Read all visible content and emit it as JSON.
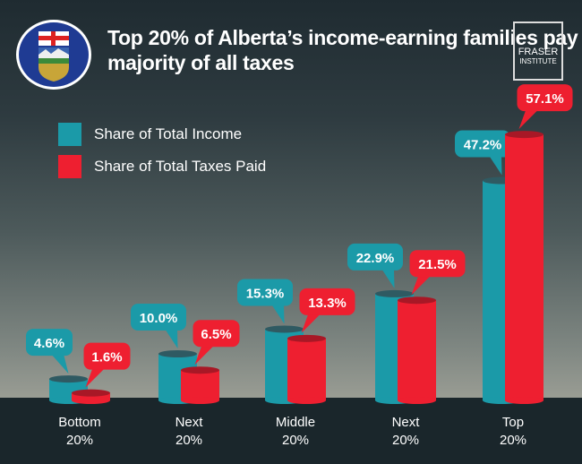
{
  "title": "Top 20% of Alberta’s income-earning families pay majority of all taxes",
  "logo": {
    "line1": "FRASER",
    "line2": "INSTITUTE"
  },
  "crest": "alberta-coat-of-arms",
  "colors": {
    "income": "#1b9aa8",
    "taxes": "#ee1f30"
  },
  "chart_data": {
    "type": "bar",
    "title": "Top 20% of Alberta’s income-earning families pay majority of all taxes",
    "categories": [
      [
        "Bottom",
        "20%"
      ],
      [
        "Next",
        "20%"
      ],
      [
        "Middle",
        "20%"
      ],
      [
        "Next",
        "20%"
      ],
      [
        "Top",
        "20%"
      ]
    ],
    "series": [
      {
        "name": "Share of Total Income",
        "values": [
          4.6,
          10.0,
          15.3,
          22.9,
          47.2
        ],
        "labels": [
          "4.6%",
          "10.0%",
          "15.3%",
          "22.9%",
          "47.2%"
        ]
      },
      {
        "name": "Share of Total Taxes Paid",
        "values": [
          1.6,
          6.5,
          13.3,
          21.5,
          57.1
        ],
        "labels": [
          "1.6%",
          "6.5%",
          "13.3%",
          "21.5%",
          "57.1%"
        ]
      }
    ],
    "legend": "top-left",
    "grid": false,
    "ylim": [
      0,
      60
    ]
  }
}
